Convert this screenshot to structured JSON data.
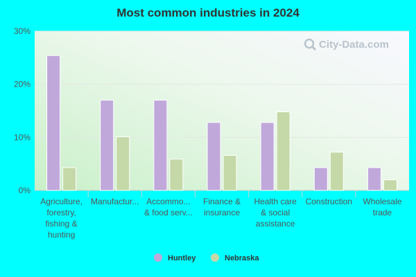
{
  "chart_data": {
    "type": "bar",
    "title": "Most common industries in 2024",
    "categories": [
      [
        "Agriculture,",
        "forestry,",
        "fishing &",
        "hunting"
      ],
      [
        "Manufactur..."
      ],
      [
        "Accommo...",
        "& food serv..."
      ],
      [
        "Finance &",
        "insurance"
      ],
      [
        "Health care",
        "& social",
        "assistance"
      ],
      [
        "Construction"
      ],
      [
        "Wholesale",
        "trade"
      ]
    ],
    "series": [
      {
        "name": "Huntley",
        "color": "#c0a8db",
        "values": [
          25.4,
          17.0,
          17.0,
          12.8,
          12.8,
          4.3,
          4.3
        ]
      },
      {
        "name": "Nebraska",
        "color": "#c5d9a8",
        "values": [
          4.3,
          10.1,
          5.9,
          6.6,
          14.8,
          7.2,
          2.0
        ]
      }
    ],
    "yticks": [
      {
        "value": 0,
        "label": "0%"
      },
      {
        "value": 10,
        "label": "10%"
      },
      {
        "value": 20,
        "label": "20%"
      },
      {
        "value": 30,
        "label": "30%"
      }
    ],
    "ylim": [
      0,
      30
    ],
    "grid": true,
    "legend_position": "bottom-center",
    "watermark": "City-Data.com"
  }
}
